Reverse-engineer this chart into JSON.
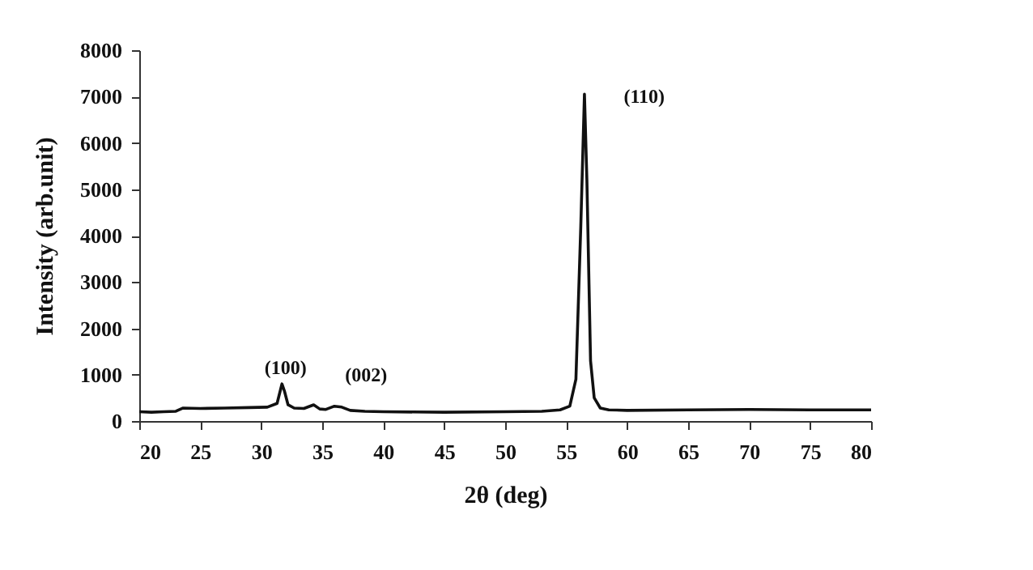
{
  "chart_data": {
    "type": "line",
    "xlabel": "2θ (deg)",
    "ylabel": "Intensity (arb.unit)",
    "xlim": [
      20,
      80
    ],
    "ylim": [
      0,
      8000
    ],
    "xticks": [
      20,
      25,
      30,
      35,
      40,
      45,
      50,
      55,
      60,
      65,
      70,
      75,
      80
    ],
    "yticks": [
      0,
      1000,
      2000,
      3000,
      4000,
      5000,
      6000,
      7000,
      8000
    ],
    "grid": false,
    "marker": "none",
    "line_style": "solid",
    "annotations": [
      "(100)",
      "(002)",
      "(110)"
    ],
    "series": [
      {
        "color": "#111111",
        "x": [
          20,
          21,
          22,
          23,
          23.6,
          25,
          27,
          29,
          30.5,
          31.3,
          31.7,
          31.9,
          32.2,
          32.7,
          33.5,
          34.3,
          34.8,
          35.3,
          36,
          36.6,
          37.3,
          38.5,
          40,
          45,
          50,
          53,
          54.5,
          55.3,
          55.8,
          56.2,
          56.5,
          56.7,
          57,
          57.3,
          57.8,
          58.5,
          60,
          65,
          70,
          75,
          80
        ],
        "values": [
          200,
          190,
          200,
          210,
          280,
          270,
          280,
          290,
          300,
          380,
          800,
          650,
          350,
          280,
          270,
          350,
          260,
          250,
          320,
          300,
          230,
          210,
          200,
          190,
          200,
          210,
          240,
          320,
          900,
          4200,
          7050,
          5200,
          1300,
          500,
          280,
          240,
          230,
          240,
          250,
          240,
          240
        ]
      }
    ]
  }
}
